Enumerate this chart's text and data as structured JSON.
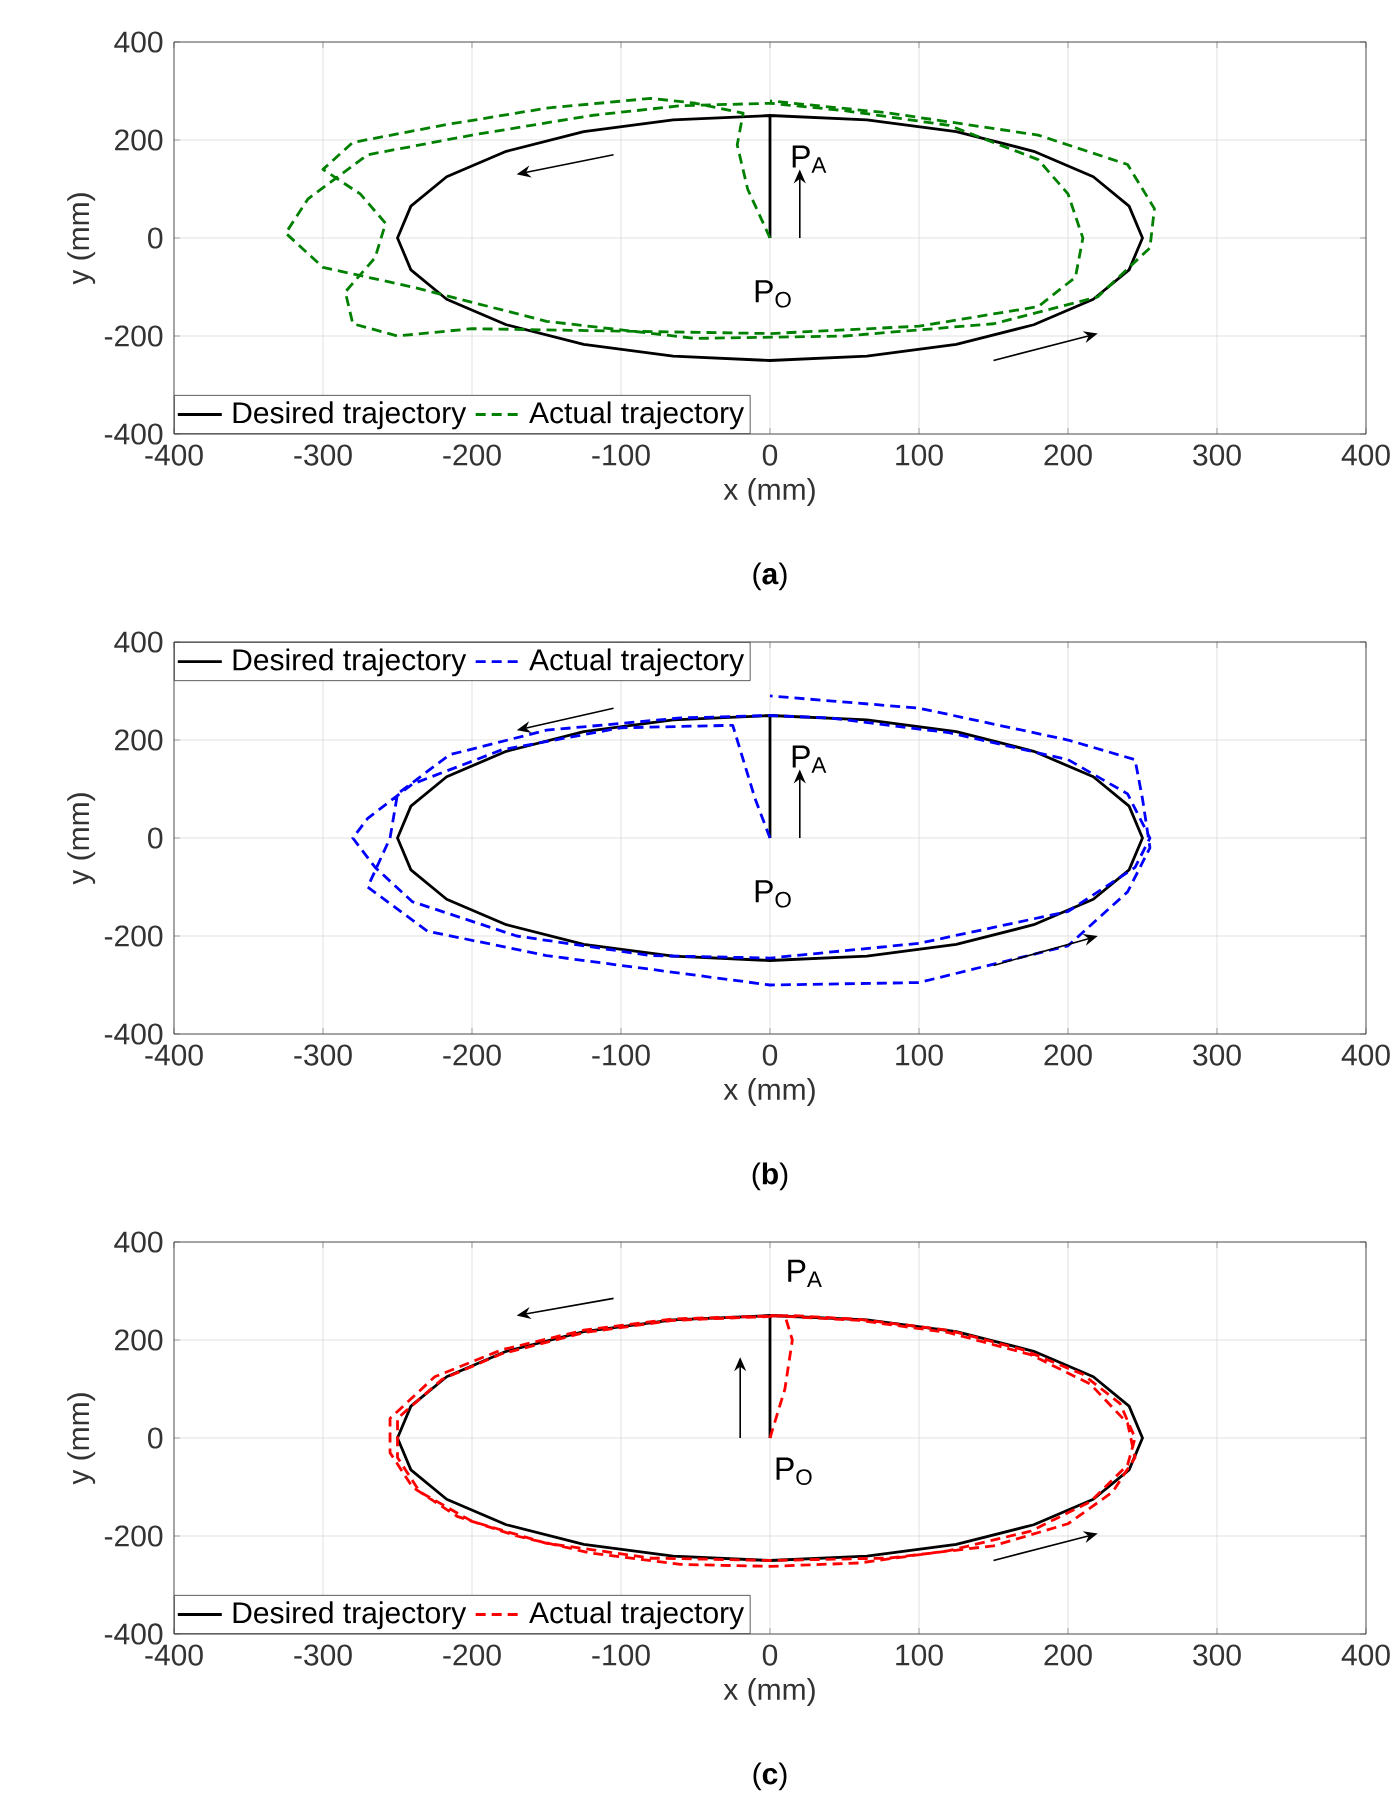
{
  "chart_data": [
    {
      "type": "line",
      "xlabel": "x (mm)",
      "ylabel": "y (mm)",
      "xlim": [
        -400,
        400
      ],
      "ylim": [
        -400,
        400
      ],
      "xticks": [
        -400,
        -300,
        -200,
        -100,
        0,
        100,
        200,
        300,
        400
      ],
      "yticks": [
        -400,
        -200,
        0,
        200,
        400
      ],
      "grid": true,
      "legend": "bottom left",
      "series": [
        {
          "name": "Desired trajectory",
          "color": "#000000",
          "line_style": "solid",
          "x": [
            0,
            0,
            -65,
            -125,
            -177,
            -217,
            -241,
            -250,
            -241,
            -217,
            -177,
            -125,
            -65,
            0,
            65,
            125,
            177,
            217,
            241,
            250,
            241,
            217,
            177,
            125,
            65,
            0
          ],
          "values": [
            0,
            250,
            241,
            217,
            177,
            125,
            65,
            0,
            -65,
            -125,
            -177,
            -217,
            -241,
            -250,
            -241,
            -217,
            -177,
            -125,
            -65,
            0,
            65,
            125,
            177,
            217,
            241,
            250
          ]
        },
        {
          "name": "Actual trajectory",
          "color": "#008000",
          "line_style": "dashed",
          "x": [
            0,
            -15,
            -22,
            -18,
            -50,
            -80,
            -150,
            -220,
            -280,
            -300,
            -275,
            -258,
            -265,
            -285,
            -280,
            -250,
            -200,
            -100,
            0,
            100,
            180,
            205,
            210,
            200,
            180,
            120,
            50,
            0,
            -60,
            -120,
            -200,
            -270,
            -310,
            -325,
            -300,
            -240,
            -150,
            -50,
            50,
            150,
            220,
            255,
            258,
            240,
            180,
            80,
            0
          ],
          "values": [
            0,
            100,
            190,
            255,
            275,
            285,
            265,
            230,
            195,
            140,
            90,
            30,
            -40,
            -110,
            -175,
            -200,
            -185,
            -190,
            -195,
            -180,
            -140,
            -80,
            0,
            90,
            160,
            230,
            260,
            275,
            270,
            250,
            210,
            170,
            80,
            10,
            -60,
            -100,
            -170,
            -205,
            -200,
            -175,
            -120,
            -20,
            60,
            150,
            210,
            255,
            280
          ]
        }
      ],
      "annotations": [
        "P$_{A}$",
        "P$_{O}$",
        "(**a**)"
      ]
    },
    {
      "type": "line",
      "xlabel": "x (mm)",
      "ylabel": "y (mm)",
      "xlim": [
        -400,
        400
      ],
      "ylim": [
        -400,
        400
      ],
      "xticks": [
        -400,
        -300,
        -200,
        -100,
        0,
        100,
        200,
        300,
        400
      ],
      "yticks": [
        -400,
        -200,
        0,
        200,
        400
      ],
      "grid": true,
      "legend": "top left",
      "series": [
        {
          "name": "Desired trajectory",
          "color": "#000000",
          "line_style": "solid",
          "x": [
            0,
            0,
            -65,
            -125,
            -177,
            -217,
            -241,
            -250,
            -241,
            -217,
            -177,
            -125,
            -65,
            0,
            65,
            125,
            177,
            217,
            241,
            250,
            241,
            217,
            177,
            125,
            65,
            0
          ],
          "values": [
            0,
            250,
            241,
            217,
            177,
            125,
            65,
            0,
            -65,
            -125,
            -177,
            -217,
            -241,
            -250,
            -241,
            -217,
            -177,
            -125,
            -65,
            0,
            65,
            125,
            177,
            217,
            241,
            250
          ]
        },
        {
          "name": "Actual trajectory",
          "color": "#0000ff",
          "line_style": "dashed",
          "x": [
            0,
            -10,
            -25,
            -100,
            -180,
            -240,
            -270,
            -280,
            -265,
            -240,
            -170,
            -80,
            0,
            100,
            200,
            245,
            255,
            240,
            200,
            120,
            40,
            0,
            -60,
            -150,
            -215,
            -250,
            -255,
            -270,
            -230,
            -150,
            -50,
            0,
            100,
            200,
            240,
            255,
            250,
            245,
            200,
            100,
            0
          ],
          "values": [
            0,
            80,
            230,
            225,
            180,
            110,
            40,
            0,
            -60,
            -130,
            -200,
            -240,
            -245,
            -215,
            -150,
            -60,
            0,
            90,
            160,
            215,
            245,
            250,
            245,
            220,
            170,
            90,
            0,
            -100,
            -190,
            -240,
            -280,
            -300,
            -295,
            -220,
            -110,
            -20,
            80,
            160,
            200,
            265,
            290
          ]
        }
      ],
      "annotations": [
        "P$_{A}$",
        "P$_{O}$",
        "(**b**)"
      ]
    },
    {
      "type": "line",
      "xlabel": "x (mm)",
      "ylabel": "y (mm)",
      "xlim": [
        -400,
        400
      ],
      "ylim": [
        -400,
        400
      ],
      "xticks": [
        -400,
        -300,
        -200,
        -100,
        0,
        100,
        200,
        300,
        400
      ],
      "yticks": [
        -400,
        -200,
        0,
        200,
        400
      ],
      "grid": true,
      "legend": "bottom left",
      "series": [
        {
          "name": "Desired trajectory",
          "color": "#000000",
          "line_style": "solid",
          "x": [
            0,
            0,
            -65,
            -125,
            -177,
            -217,
            -241,
            -250,
            -241,
            -217,
            -177,
            -125,
            -65,
            0,
            65,
            125,
            177,
            217,
            241,
            250,
            241,
            217,
            177,
            125,
            65,
            0
          ],
          "values": [
            0,
            250,
            241,
            217,
            177,
            125,
            65,
            0,
            -65,
            -125,
            -177,
            -217,
            -241,
            -250,
            -241,
            -217,
            -177,
            -125,
            -65,
            0,
            65,
            125,
            177,
            217,
            241,
            250
          ]
        },
        {
          "name": "Actual trajectory",
          "color": "#ff0000",
          "line_style": "dashed",
          "x": [
            0,
            10,
            15,
            10,
            -65,
            -125,
            -180,
            -225,
            -255,
            -255,
            -240,
            -210,
            -170,
            -120,
            -60,
            0,
            60,
            120,
            175,
            215,
            240,
            245,
            235,
            210,
            170,
            120,
            60,
            15,
            -65,
            -125,
            -180,
            -220,
            -250,
            -250,
            -235,
            -200,
            -150,
            -80,
            0,
            80,
            150,
            200,
            230,
            245,
            240,
            215,
            175,
            120,
            60,
            0
          ],
          "values": [
            0,
            100,
            200,
            250,
            243,
            220,
            180,
            125,
            40,
            -30,
            -100,
            -160,
            -200,
            -235,
            -258,
            -262,
            -255,
            -230,
            -190,
            -130,
            -55,
            0,
            70,
            130,
            180,
            220,
            242,
            250,
            240,
            215,
            172,
            120,
            40,
            -40,
            -110,
            -170,
            -215,
            -245,
            -250,
            -245,
            -220,
            -175,
            -110,
            -40,
            30,
            110,
            170,
            215,
            240,
            250
          ]
        }
      ],
      "annotations": [
        "P$_{A}$",
        "P$_{O}$",
        "(**c**)"
      ]
    }
  ]
}
